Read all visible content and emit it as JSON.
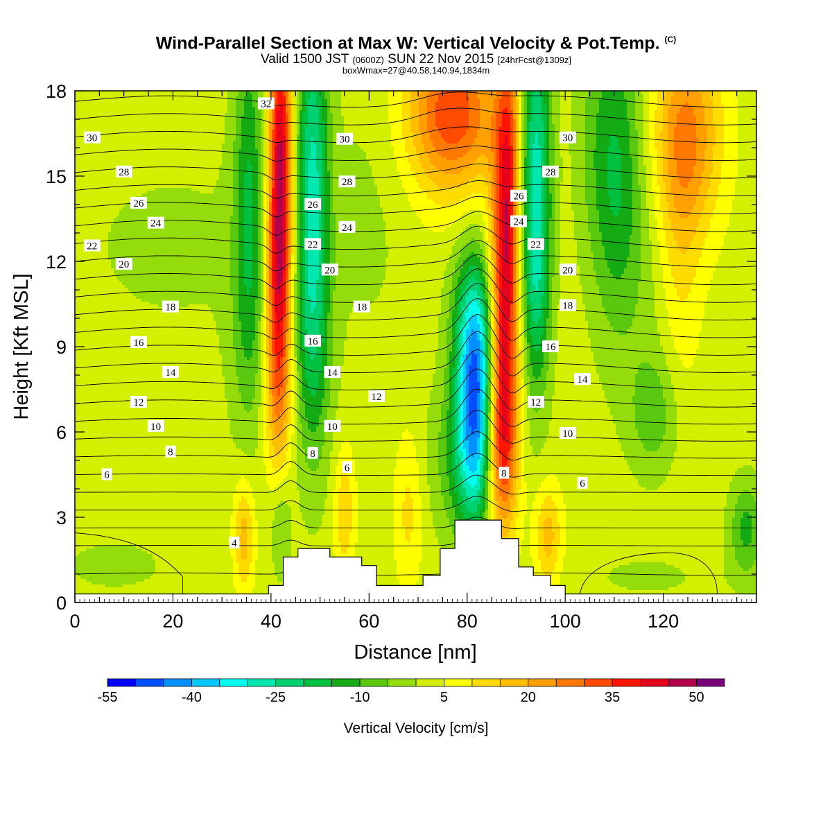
{
  "title": {
    "main": "Wind-Parallel Section at Max W: Vertical Velocity & Pot.Temp.",
    "copyright": "(C)",
    "valid_a": "Valid 1500 JST",
    "valid_b": "(0600Z)",
    "valid_c": "SUN 22 Nov 2015",
    "valid_d": "[24hrFcst@1309z]",
    "box": "boxWmax=27@40.58,140.94,1834m"
  },
  "chart_data": {
    "type": "heatmap",
    "xlabel": "Distance [nm]",
    "ylabel": "Height [Kft MSL]",
    "xlim": [
      0,
      139
    ],
    "ylim": [
      0,
      18
    ],
    "x_ticks": [
      "0",
      "20",
      "40",
      "60",
      "80",
      "100",
      "120"
    ],
    "y_ticks": [
      "0",
      "3",
      "6",
      "9",
      "12",
      "15",
      "18"
    ],
    "colorbar": {
      "title": "Vertical Velocity [cm/s]",
      "tick_labels": [
        "-55",
        "-40",
        "-25",
        "-10",
        "5",
        "20",
        "35",
        "50"
      ],
      "levels": [
        -55,
        -50,
        -45,
        -40,
        -35,
        -30,
        -25,
        -20,
        -15,
        -10,
        -5,
        0,
        5,
        10,
        15,
        20,
        25,
        30,
        35,
        40,
        45,
        50,
        55
      ],
      "colors": [
        "#0000ff",
        "#0050ff",
        "#0090ff",
        "#00c8ff",
        "#00ffee",
        "#00e8b0",
        "#00d070",
        "#00c040",
        "#14aa14",
        "#5ac80f",
        "#94dd0a",
        "#d2f000",
        "#ffff00",
        "#ffdc00",
        "#ffbe00",
        "#ffa000",
        "#ff7800",
        "#ff4b00",
        "#ff1400",
        "#e6001e",
        "#b4004b",
        "#780078"
      ]
    },
    "terrain_kft": [
      {
        "x": 0,
        "h": 0.3
      },
      {
        "x": 39.5,
        "h": 0.3
      },
      {
        "x": 39.5,
        "h": 0.6
      },
      {
        "x": 42.5,
        "h": 0.6
      },
      {
        "x": 42.5,
        "h": 1.6
      },
      {
        "x": 45.5,
        "h": 1.6
      },
      {
        "x": 45.5,
        "h": 1.9
      },
      {
        "x": 52,
        "h": 1.9
      },
      {
        "x": 52,
        "h": 1.6
      },
      {
        "x": 58.5,
        "h": 1.6
      },
      {
        "x": 58.5,
        "h": 1.3
      },
      {
        "x": 61.5,
        "h": 1.3
      },
      {
        "x": 61.5,
        "h": 0.6
      },
      {
        "x": 71,
        "h": 0.6
      },
      {
        "x": 71,
        "h": 0.95
      },
      {
        "x": 74.5,
        "h": 0.95
      },
      {
        "x": 74.5,
        "h": 1.9
      },
      {
        "x": 77.5,
        "h": 1.9
      },
      {
        "x": 77.5,
        "h": 2.9
      },
      {
        "x": 87,
        "h": 2.9
      },
      {
        "x": 87,
        "h": 2.25
      },
      {
        "x": 90.5,
        "h": 2.25
      },
      {
        "x": 90.5,
        "h": 1.25
      },
      {
        "x": 93.5,
        "h": 1.25
      },
      {
        "x": 93.5,
        "h": 0.95
      },
      {
        "x": 97,
        "h": 0.95
      },
      {
        "x": 97,
        "h": 0.6
      },
      {
        "x": 100,
        "h": 0.6
      },
      {
        "x": 100,
        "h": 0.3
      },
      {
        "x": 139,
        "h": 0.3
      }
    ],
    "theta_levels": [
      4,
      6,
      8,
      10,
      12,
      14,
      16,
      18,
      20,
      22,
      24,
      26,
      28,
      30,
      32
    ],
    "theta_labels": [
      {
        "t": "4",
        "x": 32.5,
        "y": 2.1
      },
      {
        "t": "6",
        "x": 6.5,
        "y": 4.5
      },
      {
        "t": "6",
        "x": 55.5,
        "y": 4.75
      },
      {
        "t": "6",
        "x": 103.5,
        "y": 4.2
      },
      {
        "t": "8",
        "x": 19.5,
        "y": 5.3
      },
      {
        "t": "8",
        "x": 48.5,
        "y": 5.25
      },
      {
        "t": "8",
        "x": 87.5,
        "y": 4.55
      },
      {
        "t": "10",
        "x": 16.5,
        "y": 6.2
      },
      {
        "t": "10",
        "x": 52.5,
        "y": 6.2
      },
      {
        "t": "10",
        "x": 100.5,
        "y": 5.95
      },
      {
        "t": "12",
        "x": 13,
        "y": 7.05
      },
      {
        "t": "12",
        "x": 61.5,
        "y": 7.25
      },
      {
        "t": "12",
        "x": 94,
        "y": 7.05
      },
      {
        "t": "14",
        "x": 19.5,
        "y": 8.1
      },
      {
        "t": "14",
        "x": 52.5,
        "y": 8.1
      },
      {
        "t": "14",
        "x": 103.5,
        "y": 7.85
      },
      {
        "t": "16",
        "x": 13,
        "y": 9.15
      },
      {
        "t": "16",
        "x": 48.5,
        "y": 9.2
      },
      {
        "t": "16",
        "x": 97,
        "y": 9.0
      },
      {
        "t": "18",
        "x": 19.5,
        "y": 10.4
      },
      {
        "t": "18",
        "x": 58.5,
        "y": 10.4
      },
      {
        "t": "18",
        "x": 100.5,
        "y": 10.45
      },
      {
        "t": "20",
        "x": 10,
        "y": 11.9
      },
      {
        "t": "20",
        "x": 52,
        "y": 11.7
      },
      {
        "t": "20",
        "x": 100.5,
        "y": 11.7
      },
      {
        "t": "22",
        "x": 3.5,
        "y": 12.55
      },
      {
        "t": "22",
        "x": 48.5,
        "y": 12.6
      },
      {
        "t": "22",
        "x": 94,
        "y": 12.6
      },
      {
        "t": "24",
        "x": 16.5,
        "y": 13.35
      },
      {
        "t": "24",
        "x": 55.5,
        "y": 13.2
      },
      {
        "t": "24",
        "x": 90.5,
        "y": 13.4
      },
      {
        "t": "26",
        "x": 13,
        "y": 14.05
      },
      {
        "t": "26",
        "x": 48.5,
        "y": 14.0
      },
      {
        "t": "26",
        "x": 90.5,
        "y": 14.3
      },
      {
        "t": "28",
        "x": 10,
        "y": 15.15
      },
      {
        "t": "28",
        "x": 55.5,
        "y": 14.8
      },
      {
        "t": "28",
        "x": 97,
        "y": 15.15
      },
      {
        "t": "30",
        "x": 3.5,
        "y": 16.35
      },
      {
        "t": "30",
        "x": 55,
        "y": 16.3
      },
      {
        "t": "30",
        "x": 100.5,
        "y": 16.35
      },
      {
        "t": "32",
        "x": 39,
        "y": 17.55
      }
    ],
    "w_features": [
      {
        "x": 42,
        "y": 15.5,
        "sx": 1.7,
        "sy": 4.5,
        "w": 40
      },
      {
        "x": 41.3,
        "y": 10.5,
        "sx": 1.8,
        "sy": 3.5,
        "w": 22
      },
      {
        "x": 41.5,
        "y": 7.0,
        "sx": 2.2,
        "sy": 2.0,
        "w": 8
      },
      {
        "x": 48.5,
        "y": 14.5,
        "sx": 2.3,
        "sy": 5.0,
        "w": -28
      },
      {
        "x": 48.5,
        "y": 8.5,
        "sx": 3.0,
        "sy": 3.0,
        "w": -8
      },
      {
        "x": 35.5,
        "y": 14.5,
        "sx": 2.2,
        "sy": 4.5,
        "w": -16
      },
      {
        "x": 35.5,
        "y": 9.0,
        "sx": 3.0,
        "sy": 3.0,
        "w": -5
      },
      {
        "x": 77,
        "y": 17.2,
        "sx": 6.5,
        "sy": 2.0,
        "w": 32
      },
      {
        "x": 88.5,
        "y": 15.5,
        "sx": 1.8,
        "sy": 3.5,
        "w": 22
      },
      {
        "x": 87.5,
        "y": 10.0,
        "sx": 2.1,
        "sy": 4.2,
        "w": 36
      },
      {
        "x": 86.5,
        "y": 5.5,
        "sx": 2.5,
        "sy": 2.2,
        "w": 26
      },
      {
        "x": 82,
        "y": 6.8,
        "sx": 2.8,
        "sy": 2.8,
        "w": -42
      },
      {
        "x": 81,
        "y": 9.8,
        "sx": 3.0,
        "sy": 2.0,
        "w": -18
      },
      {
        "x": 79,
        "y": 5.0,
        "sx": 4.5,
        "sy": 2.0,
        "w": -12
      },
      {
        "x": 94,
        "y": 15.0,
        "sx": 2.2,
        "sy": 4.5,
        "w": -30
      },
      {
        "x": 94,
        "y": 10.5,
        "sx": 2.0,
        "sy": 2.5,
        "w": -8
      },
      {
        "x": 110.5,
        "y": 15.0,
        "sx": 3.8,
        "sy": 4.0,
        "w": -18
      },
      {
        "x": 125,
        "y": 16.5,
        "sx": 5.0,
        "sy": 2.5,
        "w": 22
      },
      {
        "x": 123.5,
        "y": 12.5,
        "sx": 3.0,
        "sy": 3.5,
        "w": 8
      },
      {
        "x": 117.5,
        "y": 11.0,
        "sx": 3.5,
        "sy": 3.5,
        "w": -3
      },
      {
        "x": 118,
        "y": 6.6,
        "sx": 3.5,
        "sy": 1.5,
        "w": -10
      },
      {
        "x": 8,
        "y": 1.3,
        "sx": 14,
        "sy": 1.2,
        "w": -3
      },
      {
        "x": 34.5,
        "y": 2.3,
        "sx": 1.5,
        "sy": 1.4,
        "w": 16
      },
      {
        "x": 42,
        "y": 2.8,
        "sx": 1.5,
        "sy": 1.4,
        "w": -9
      },
      {
        "x": 55,
        "y": 3.2,
        "sx": 1.5,
        "sy": 1.6,
        "w": 12
      },
      {
        "x": 68,
        "y": 3.2,
        "sx": 2.0,
        "sy": 2.0,
        "w": 9
      },
      {
        "x": 96.5,
        "y": 2.3,
        "sx": 2.0,
        "sy": 1.3,
        "w": 15
      },
      {
        "x": 117,
        "y": 0.9,
        "sx": 13,
        "sy": 0.8,
        "w": -3
      },
      {
        "x": 137,
        "y": 2.6,
        "sx": 2.5,
        "sy": 1.2,
        "w": -14
      },
      {
        "x": 20,
        "y": 12.5,
        "sx": 22,
        "sy": 3.5,
        "w": -3
      },
      {
        "x": 60,
        "y": 14.0,
        "sx": 6,
        "sy": 4.0,
        "w": -3
      },
      {
        "x": 105,
        "y": 16.5,
        "sx": 3,
        "sy": 3.0,
        "w": -4
      }
    ]
  }
}
